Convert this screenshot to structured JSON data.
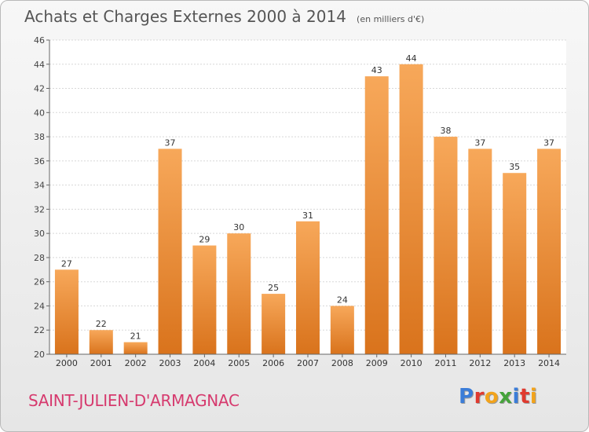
{
  "header": {
    "title": "Achats et Charges Externes 2000 à 2014",
    "unit": "(en milliers d'€)"
  },
  "commune": "SAINT-JULIEN-D'ARMAGNAC",
  "logo": {
    "text": "Proxiti",
    "letter_colors": [
      "#3b7dd8",
      "#e03a2f",
      "#f2a31b",
      "#45a33b",
      "#3b7dd8",
      "#e03a2f",
      "#f2a31b"
    ]
  },
  "chart_data": {
    "type": "bar",
    "categories": [
      "2000",
      "2001",
      "2002",
      "2003",
      "2004",
      "2005",
      "2006",
      "2007",
      "2008",
      "2009",
      "2010",
      "2011",
      "2012",
      "2013",
      "2014"
    ],
    "values": [
      27,
      22,
      21,
      37,
      29,
      30,
      25,
      31,
      24,
      43,
      44,
      38,
      37,
      35,
      37
    ],
    "ylim": [
      20,
      46
    ],
    "yticks": [
      20,
      22,
      24,
      26,
      28,
      30,
      32,
      34,
      36,
      38,
      40,
      42,
      44,
      46
    ],
    "grid": true,
    "bar_color_top": "#f7a85a",
    "bar_color_bottom": "#d9731c"
  }
}
